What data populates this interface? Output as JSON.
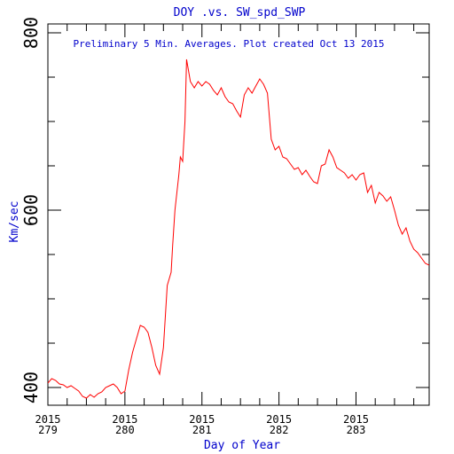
{
  "chart_data": {
    "type": "line",
    "title": "DOY .vs. SW_spd_SWP",
    "annotation": "Preliminary 5 Min. Averages. Plot created Oct 13 2015",
    "xlabel": "Day of Year",
    "ylabel": "Km/sec",
    "xlim": [
      279.0,
      283.95
    ],
    "ylim": [
      380,
      810
    ],
    "x_ticks": [
      {
        "value": 279,
        "year": "2015",
        "day": "279"
      },
      {
        "value": 280,
        "year": "2015",
        "day": "280"
      },
      {
        "value": 281,
        "year": "2015",
        "day": "281"
      },
      {
        "value": 282,
        "year": "2015",
        "day": "282"
      },
      {
        "value": 283,
        "year": "2015",
        "day": "283"
      }
    ],
    "y_ticks": [
      {
        "value": 400,
        "label": "400"
      },
      {
        "value": 600,
        "label": "600"
      },
      {
        "value": 800,
        "label": "800"
      }
    ],
    "grid": false,
    "series": [
      {
        "color": "#ff0000",
        "x": [
          279.0,
          279.05,
          279.1,
          279.15,
          279.2,
          279.25,
          279.3,
          279.35,
          279.4,
          279.45,
          279.5,
          279.55,
          279.6,
          279.65,
          279.7,
          279.75,
          279.8,
          279.85,
          279.9,
          279.95,
          280.0,
          280.05,
          280.1,
          280.15,
          280.2,
          280.25,
          280.3,
          280.35,
          280.4,
          280.45,
          280.5,
          280.55,
          280.6,
          280.62,
          280.65,
          280.7,
          280.72,
          280.75,
          280.78,
          280.8,
          280.85,
          280.9,
          280.95,
          281.0,
          281.05,
          281.1,
          281.15,
          281.2,
          281.25,
          281.3,
          281.35,
          281.4,
          281.45,
          281.5,
          281.55,
          281.6,
          281.65,
          281.7,
          281.75,
          281.8,
          281.85,
          281.9,
          281.95,
          282.0,
          282.05,
          282.1,
          282.15,
          282.2,
          282.25,
          282.3,
          282.35,
          282.4,
          282.45,
          282.5,
          282.55,
          282.6,
          282.65,
          282.7,
          282.75,
          282.8,
          282.85,
          282.9,
          282.95,
          283.0,
          283.05,
          283.1,
          283.15,
          283.2,
          283.25,
          283.3,
          283.35,
          283.4,
          283.45,
          283.5,
          283.55,
          283.6,
          283.65,
          283.7,
          283.75,
          283.8,
          283.85,
          283.9,
          283.95
        ],
        "values": [
          405,
          410,
          408,
          404,
          403,
          400,
          402,
          399,
          396,
          390,
          388,
          392,
          389,
          393,
          395,
          400,
          402,
          404,
          400,
          393,
          396,
          420,
          440,
          455,
          470,
          468,
          462,
          445,
          425,
          415,
          445,
          515,
          530,
          560,
          600,
          640,
          660,
          655,
          700,
          770,
          745,
          738,
          745,
          740,
          745,
          742,
          735,
          730,
          738,
          728,
          722,
          720,
          712,
          705,
          730,
          738,
          732,
          740,
          748,
          742,
          732,
          680,
          668,
          672,
          660,
          658,
          652,
          646,
          648,
          640,
          645,
          638,
          632,
          630,
          650,
          652,
          668,
          660,
          648,
          645,
          642,
          636,
          640,
          634,
          640,
          642,
          620,
          628,
          608,
          620,
          616,
          610,
          615,
          600,
          583,
          573,
          580,
          565,
          556,
          552,
          546,
          540,
          538
        ]
      }
    ]
  }
}
